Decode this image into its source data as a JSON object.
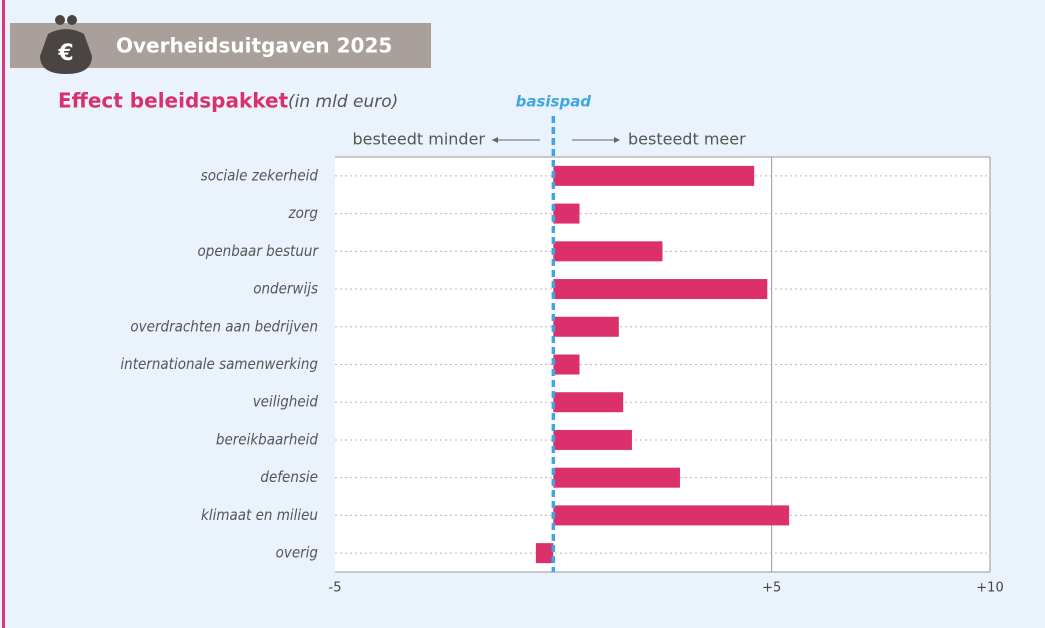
{
  "header": {
    "icon": "€",
    "title": "Overheidsuitgaven 2025"
  },
  "chart_data": {
    "type": "bar",
    "orientation": "horizontal",
    "title": "Effect beleidspakket",
    "subtitle": "(in mld euro)",
    "annotations": {
      "baseline": "basispad",
      "left": "besteedt minder",
      "right": "besteedt meer"
    },
    "categories": [
      "sociale zekerheid",
      "zorg",
      "openbaar bestuur",
      "onderwijs",
      "overdrachten aan bedrijven",
      "internationale samenwerking",
      "veiligheid",
      "bereikbaarheid",
      "defensie",
      "klimaat en milieu",
      "overig"
    ],
    "values": [
      4.6,
      0.6,
      2.5,
      4.9,
      1.5,
      0.6,
      1.6,
      1.8,
      2.9,
      5.4,
      -0.4
    ],
    "color": "#db306c",
    "xlim": [
      -5,
      10
    ],
    "xticks": [
      -5,
      {
        "value": 5,
        "label": "+5"
      },
      {
        "value": 10,
        "label": "+10"
      }
    ],
    "grid": true
  }
}
